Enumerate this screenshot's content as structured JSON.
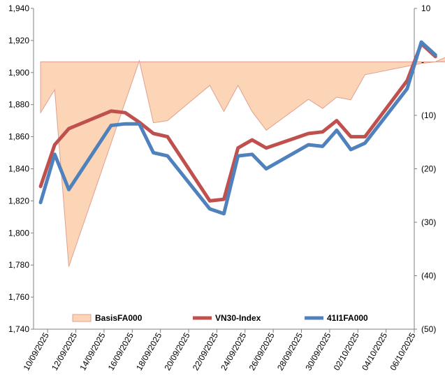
{
  "chart_data": {
    "type": "line",
    "title": "",
    "x": [
      "10/09/2025",
      "11/09/2025",
      "12/09/2025",
      "15/09/2025",
      "16/09/2025",
      "17/09/2025",
      "18/09/2025",
      "19/09/2025",
      "22/09/2025",
      "23/09/2025",
      "24/09/2025",
      "25/09/2025",
      "26/09/2025",
      "29/09/2025",
      "30/09/2025",
      "01/10/2025",
      "02/10/2025",
      "03/10/2025",
      "06/10/2025",
      "07/10/2025",
      "08/10/2025",
      "09/10/2025"
    ],
    "x_tick_labels": [
      "10/09/2025",
      "12/09/2025",
      "14/09/2025",
      "16/09/2025",
      "18/09/2025",
      "20/09/2025",
      "22/09/2025",
      "24/09/2025",
      "26/09/2025",
      "28/09/2025",
      "30/09/2025",
      "02/10/2025",
      "04/10/2025",
      "06/10/2025"
    ],
    "y_left": {
      "ylim": [
        1740,
        1940
      ],
      "ticks": [
        "1,740",
        "1,760",
        "1,780",
        "1,800",
        "1,820",
        "1,840",
        "1,860",
        "1,880",
        "1,900",
        "1,920",
        "1,940"
      ]
    },
    "y_right": {
      "ylim": [
        -50,
        10
      ],
      "ticks": [
        "(50)",
        "(40)",
        "(30)",
        "(20)",
        "(10)",
        "-",
        "10"
      ]
    },
    "series": [
      {
        "name": "BasisFA000",
        "type": "area",
        "axis": "right",
        "color": "#fbd5b5",
        "edge_color": "#e0a090",
        "points": [
          [
            "10/09/2025",
            -9.5
          ],
          [
            "11/09/2025",
            -5.2
          ],
          [
            "12/09/2025",
            -38.3
          ],
          [
            "16/09/2025",
            -7.5
          ],
          [
            "17/09/2025",
            0.2
          ],
          [
            "18/09/2025",
            -11.4
          ],
          [
            "19/09/2025",
            -11.0
          ],
          [
            "22/09/2025",
            -4.4
          ],
          [
            "23/09/2025",
            -9.3
          ],
          [
            "24/09/2025",
            -4.4
          ],
          [
            "25/09/2025",
            -9.3
          ],
          [
            "26/09/2025",
            -12.8
          ],
          [
            "29/09/2025",
            -7.0
          ],
          [
            "30/09/2025",
            -8.7
          ],
          [
            "01/10/2025",
            -6.6
          ],
          [
            "02/10/2025",
            -7.1
          ],
          [
            "03/10/2025",
            -2.4
          ],
          [
            "07/10/2025",
            -0.3
          ],
          [
            "08/10/2025",
            0.0
          ],
          [
            "09/10/2025",
            1.2
          ]
        ]
      },
      {
        "name": "VN30-Index",
        "type": "line",
        "axis": "left",
        "color": "#c0504d",
        "points": [
          [
            "10/09/2025",
            1829
          ],
          [
            "11/09/2025",
            1855
          ],
          [
            "12/09/2025",
            1865
          ],
          [
            "15/09/2025",
            1876
          ],
          [
            "16/09/2025",
            1875
          ],
          [
            "17/09/2025",
            1869
          ],
          [
            "18/09/2025",
            1862
          ],
          [
            "19/09/2025",
            1860
          ],
          [
            "22/09/2025",
            1820
          ],
          [
            "23/09/2025",
            1821
          ],
          [
            "24/09/2025",
            1853
          ],
          [
            "25/09/2025",
            1858
          ],
          [
            "26/09/2025",
            1853
          ],
          [
            "29/09/2025",
            1862
          ],
          [
            "30/09/2025",
            1863
          ],
          [
            "01/10/2025",
            1870
          ],
          [
            "02/10/2025",
            1860
          ],
          [
            "03/10/2025",
            1860
          ],
          [
            "06/10/2025",
            1895
          ],
          [
            "07/10/2025",
            1918
          ],
          [
            "08/10/2025",
            1910
          ]
        ]
      },
      {
        "name": "41I1FA000",
        "type": "line",
        "axis": "left",
        "color": "#4f81bd",
        "points": [
          [
            "10/09/2025",
            1819
          ],
          [
            "11/09/2025",
            1849
          ],
          [
            "12/09/2025",
            1827
          ],
          [
            "15/09/2025",
            1867
          ],
          [
            "16/09/2025",
            1868
          ],
          [
            "17/09/2025",
            1868
          ],
          [
            "18/09/2025",
            1850
          ],
          [
            "19/09/2025",
            1848
          ],
          [
            "22/09/2025",
            1815
          ],
          [
            "23/09/2025",
            1812
          ],
          [
            "24/09/2025",
            1848
          ],
          [
            "25/09/2025",
            1849
          ],
          [
            "26/09/2025",
            1840
          ],
          [
            "29/09/2025",
            1855
          ],
          [
            "30/09/2025",
            1854
          ],
          [
            "01/10/2025",
            1864
          ],
          [
            "02/10/2025",
            1852
          ],
          [
            "03/10/2025",
            1856
          ],
          [
            "06/10/2025",
            1890
          ],
          [
            "07/10/2025",
            1919
          ],
          [
            "08/10/2025",
            1911
          ]
        ]
      }
    ],
    "legend": [
      "BasisFA000",
      "VN30-Index",
      "41I1FA000"
    ],
    "legend_position": "bottom-inside",
    "grid": false
  }
}
